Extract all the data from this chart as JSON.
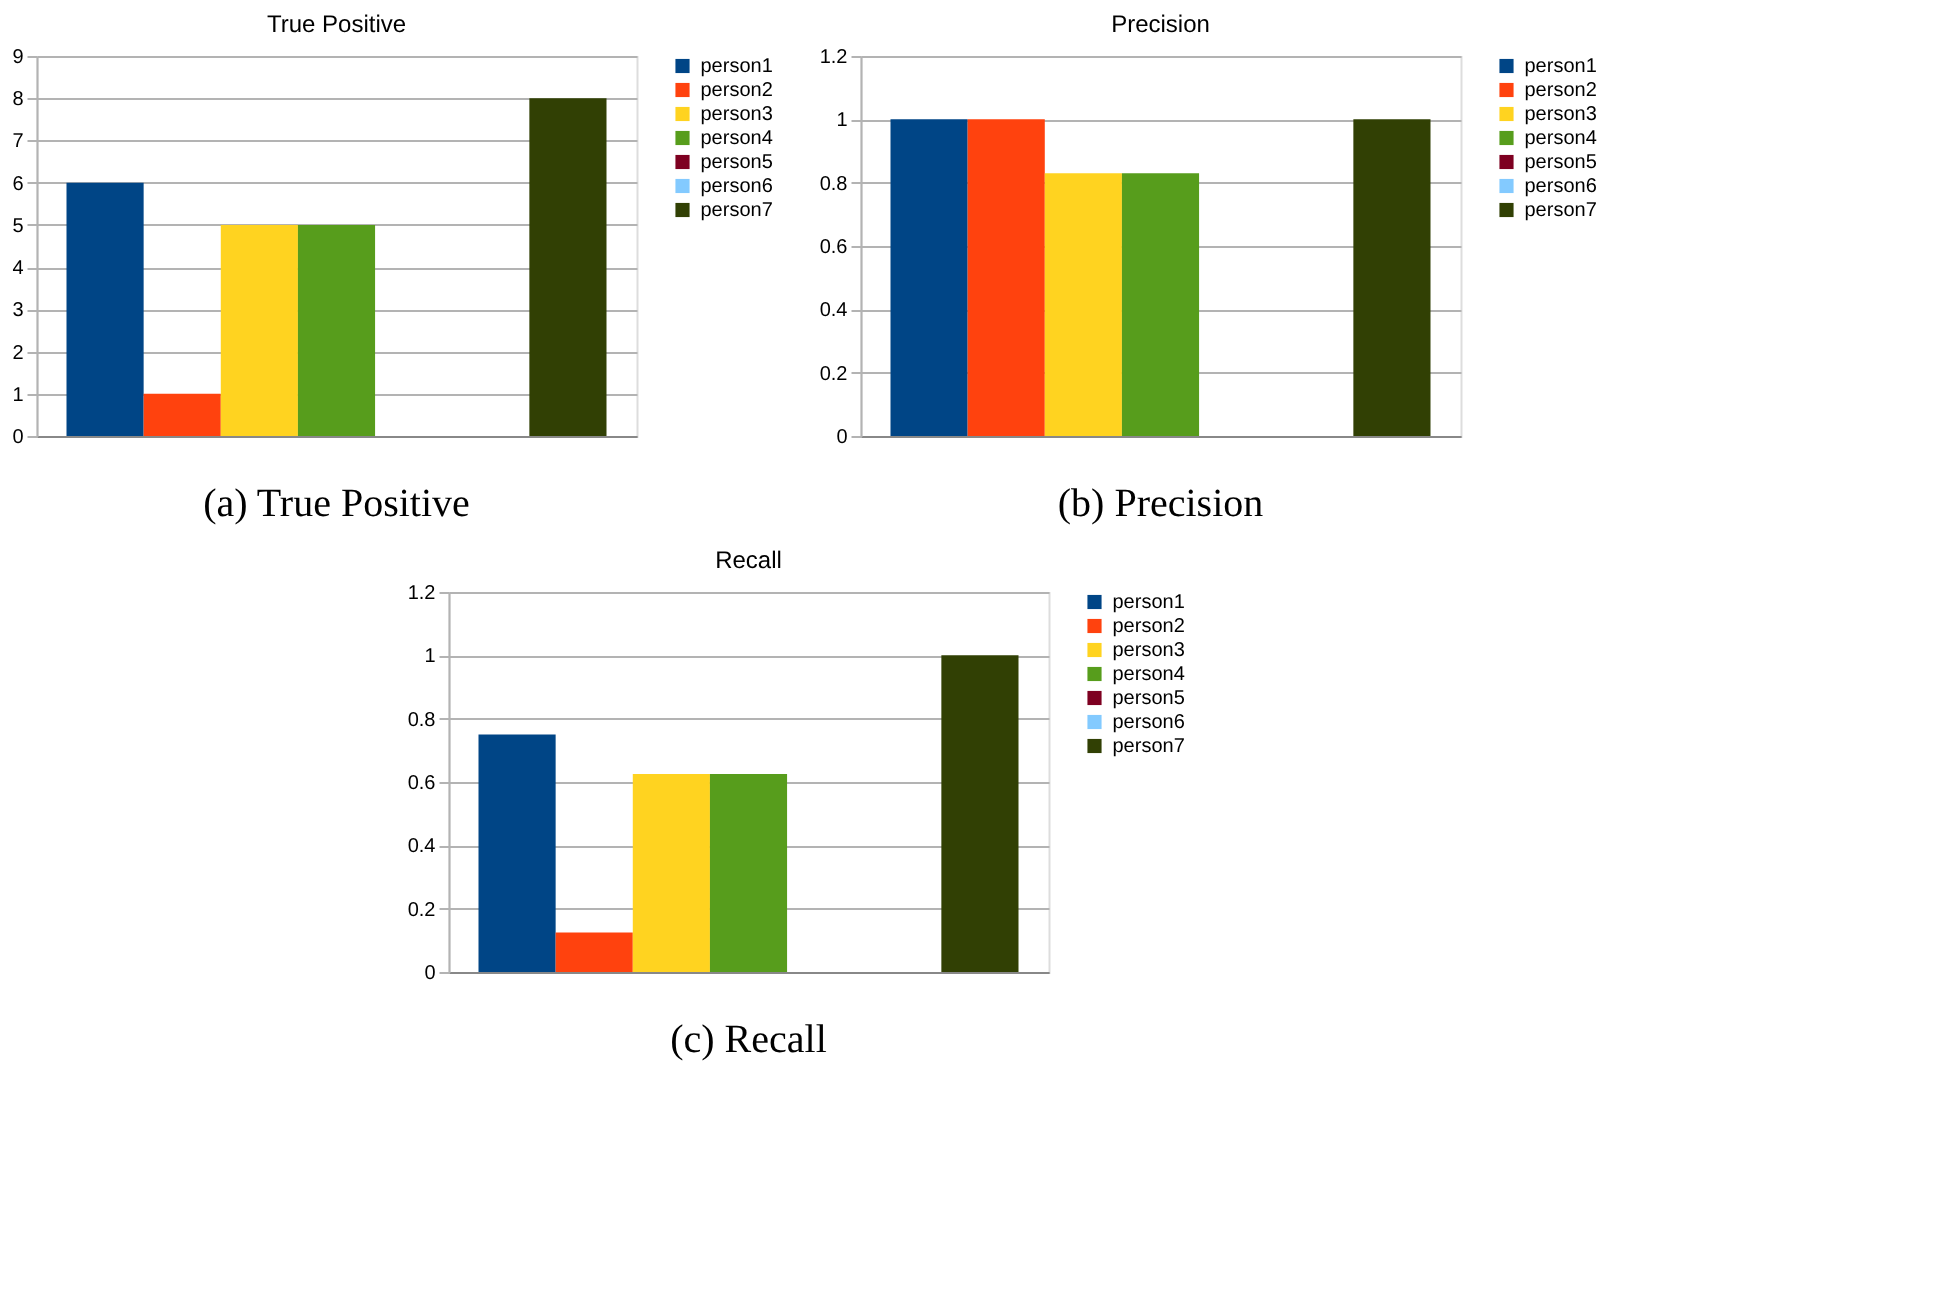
{
  "chart_data": [
    {
      "type": "bar",
      "title": "True Positive",
      "categories": [
        null
      ],
      "series": [
        {
          "name": "person1",
          "color": "#004586",
          "values": [
            6
          ]
        },
        {
          "name": "person2",
          "color": "#ff420e",
          "values": [
            1
          ]
        },
        {
          "name": "person3",
          "color": "#ffd320",
          "values": [
            5
          ]
        },
        {
          "name": "person4",
          "color": "#579d1c",
          "values": [
            5
          ]
        },
        {
          "name": "person5",
          "color": "#7e0021",
          "values": [
            0
          ]
        },
        {
          "name": "person6",
          "color": "#83caff",
          "values": [
            0
          ]
        },
        {
          "name": "person7",
          "color": "#314004",
          "values": [
            8
          ]
        }
      ],
      "ylim": [
        0,
        9
      ],
      "yticks": [
        0,
        1,
        2,
        3,
        4,
        5,
        6,
        7,
        8,
        9
      ],
      "grid": "y",
      "legend": "right",
      "tick_labels": "y",
      "annotations": [
        "(a)  True Positive"
      ]
    },
    {
      "type": "bar",
      "title": "Precision",
      "categories": [
        null
      ],
      "series": [
        {
          "name": "person1",
          "color": "#004586",
          "values": [
            1
          ]
        },
        {
          "name": "person2",
          "color": "#ff420e",
          "values": [
            1
          ]
        },
        {
          "name": "person3",
          "color": "#ffd320",
          "values": [
            0.83
          ]
        },
        {
          "name": "person4",
          "color": "#579d1c",
          "values": [
            0.83
          ]
        },
        {
          "name": "person5",
          "color": "#7e0021",
          "values": [
            0
          ]
        },
        {
          "name": "person6",
          "color": "#83caff",
          "values": [
            0
          ]
        },
        {
          "name": "person7",
          "color": "#314004",
          "values": [
            1
          ]
        }
      ],
      "ylim": [
        0,
        1.2
      ],
      "yticks": [
        0,
        0.2,
        0.4,
        0.6,
        0.8,
        1,
        1.2
      ],
      "grid": "y",
      "legend": "right",
      "tick_labels": "y",
      "annotations": [
        "(b)  Precision"
      ]
    },
    {
      "type": "bar",
      "title": "Recall",
      "categories": [
        null
      ],
      "series": [
        {
          "name": "person1",
          "color": "#004586",
          "values": [
            0.75
          ]
        },
        {
          "name": "person2",
          "color": "#ff420e",
          "values": [
            0.125
          ]
        },
        {
          "name": "person3",
          "color": "#ffd320",
          "values": [
            0.625
          ]
        },
        {
          "name": "person4",
          "color": "#579d1c",
          "values": [
            0.625
          ]
        },
        {
          "name": "person5",
          "color": "#7e0021",
          "values": [
            0
          ]
        },
        {
          "name": "person6",
          "color": "#83caff",
          "values": [
            0
          ]
        },
        {
          "name": "person7",
          "color": "#314004",
          "values": [
            1
          ]
        }
      ],
      "ylim": [
        0,
        1.2
      ],
      "yticks": [
        0,
        0.2,
        0.4,
        0.6,
        0.8,
        1,
        1.2
      ],
      "grid": "y",
      "legend": "right",
      "tick_labels": "y",
      "annotations": [
        "(c)  Recall"
      ]
    }
  ]
}
